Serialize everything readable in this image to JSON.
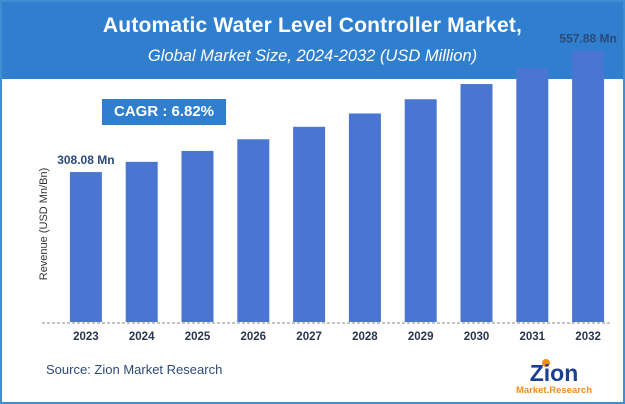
{
  "header": {
    "title": "Automatic Water Level Controller Market,",
    "subtitle": "Global Market Size, 2024-2032 (USD Million)"
  },
  "cagr_label": "CAGR :  6.82%",
  "source": "Source: Zion Market Research",
  "logo": {
    "name": "Zion",
    "tagline": "Market.Research",
    "icon": "zion-logo-icon"
  },
  "colors": {
    "bar": "#4a76d1",
    "header": "#2f7fce",
    "label": "#2a4a7a"
  },
  "chart_data": {
    "type": "bar",
    "categories": [
      "2023",
      "2024",
      "2025",
      "2026",
      "2027",
      "2028",
      "2029",
      "2030",
      "2031",
      "2032"
    ],
    "values": [
      308.08,
      329.1,
      351.5,
      375.5,
      401.1,
      428.5,
      457.7,
      488.9,
      522.2,
      557.88
    ],
    "data_labels": [
      {
        "index": 0,
        "text": "308.08 Mn"
      },
      {
        "index": 9,
        "text": "557.88 Mn"
      }
    ],
    "ylabel": "Revenue (USD Mn/Bn)",
    "xlabel": "",
    "ylim": [
      0,
      600
    ],
    "grid": false
  }
}
